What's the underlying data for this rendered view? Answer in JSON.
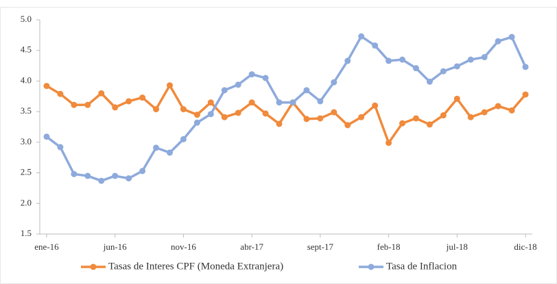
{
  "chart_data": {
    "type": "line",
    "categories": [
      "ene-16",
      null,
      null,
      null,
      null,
      "jun-16",
      null,
      null,
      null,
      null,
      "nov-16",
      null,
      null,
      null,
      null,
      "abr-17",
      null,
      null,
      null,
      null,
      "sept-17",
      null,
      null,
      null,
      null,
      "feb-18",
      null,
      null,
      null,
      null,
      "jul-18",
      null,
      null,
      null,
      null,
      "dic-18"
    ],
    "series": [
      {
        "name": "Tasas de Interes CPF (Moneda Extranjera)",
        "color": "#f08a3c",
        "values": [
          3.92,
          3.79,
          3.61,
          3.61,
          3.8,
          3.57,
          3.67,
          3.73,
          3.54,
          3.93,
          3.54,
          3.45,
          3.65,
          3.41,
          3.48,
          3.65,
          3.47,
          3.3,
          3.65,
          3.38,
          3.39,
          3.49,
          3.28,
          3.41,
          3.6,
          2.99,
          3.31,
          3.39,
          3.29,
          3.44,
          3.71,
          3.41,
          3.49,
          3.59,
          3.52,
          3.78
        ]
      },
      {
        "name": "Tasa de Inflacion",
        "color": "#8eaadc",
        "values": [
          3.09,
          2.92,
          2.48,
          2.45,
          2.37,
          2.45,
          2.41,
          2.53,
          2.91,
          2.83,
          3.05,
          3.32,
          3.46,
          3.85,
          3.94,
          4.11,
          4.05,
          3.65,
          3.65,
          3.85,
          3.67,
          3.98,
          4.33,
          4.73,
          4.58,
          4.33,
          4.35,
          4.21,
          3.99,
          4.16,
          4.24,
          4.35,
          4.39,
          4.65,
          4.72,
          4.23
        ]
      }
    ],
    "ylim": [
      1.5,
      5.0
    ],
    "yticks": [
      {
        "value": 1.5,
        "label": "1.5"
      },
      {
        "value": 2,
        "label": "2.0"
      },
      {
        "value": 2.5,
        "label": "2.5"
      },
      {
        "value": 3,
        "label": "3.0"
      },
      {
        "value": 3.5,
        "label": "3.5"
      },
      {
        "value": 4,
        "label": "4.0"
      },
      {
        "value": 4.5,
        "label": "4.5"
      },
      {
        "value": 5,
        "label": "5.0"
      }
    ],
    "grid": false,
    "legend": "bottom"
  }
}
